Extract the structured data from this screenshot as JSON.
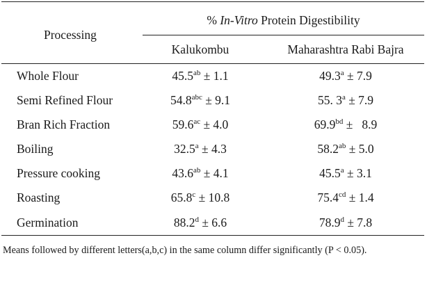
{
  "table": {
    "header": {
      "processing": "Processing",
      "group_prefix": "% ",
      "group_italic": "In-Vitro",
      "group_suffix": " Protein Digestibility",
      "col1": "Kalukombu",
      "col2": "Maharashtra Rabi Bajra"
    },
    "rows": [
      {
        "label": "Whole Flour",
        "k_mean": "45.5",
        "k_sup": "ab",
        "k_sd": " ± 1.1",
        "m_mean": "49.3",
        "m_sup": "a",
        "m_sd": " ± 7.9"
      },
      {
        "label": "Semi Refined Flour",
        "k_mean": "54.8",
        "k_sup": "abc",
        "k_sd": " ± 9.1",
        "m_mean": "55. 3",
        "m_sup": "a",
        "m_sd": " ± 7.9"
      },
      {
        "label": "Bran Rich Fraction",
        "k_mean": "59.6",
        "k_sup": "ac",
        "k_sd": " ± 4.0",
        "m_mean": "69.9",
        "m_sup": "bd",
        "m_sd": " ±   8.9"
      },
      {
        "label": "Boiling",
        "k_mean": "32.5",
        "k_sup": "a",
        "k_sd": " ± 4.3",
        "m_mean": "58.2",
        "m_sup": "ab",
        "m_sd": " ± 5.0"
      },
      {
        "label": "Pressure cooking",
        "k_mean": "43.6",
        "k_sup": "ab",
        "k_sd": " ± 4.1",
        "m_mean": "45.5",
        "m_sup": "a",
        "m_sd": " ± 3.1"
      },
      {
        "label": "Roasting",
        "k_mean": "65.8",
        "k_sup": "c",
        "k_sd": " ± 10.8",
        "m_mean": "75.4",
        "m_sup": "cd",
        "m_sd": " ± 1.4"
      },
      {
        "label": "Germination",
        "k_mean": "88.2",
        "k_sup": "d",
        "k_sd": " ± 6.6",
        "m_mean": "78.9",
        "m_sup": "d",
        "m_sd": " ± 7.8"
      }
    ],
    "footnote": "Means followed by different letters(a,b,c) in the same column differ significantly (P < 0.05)."
  }
}
